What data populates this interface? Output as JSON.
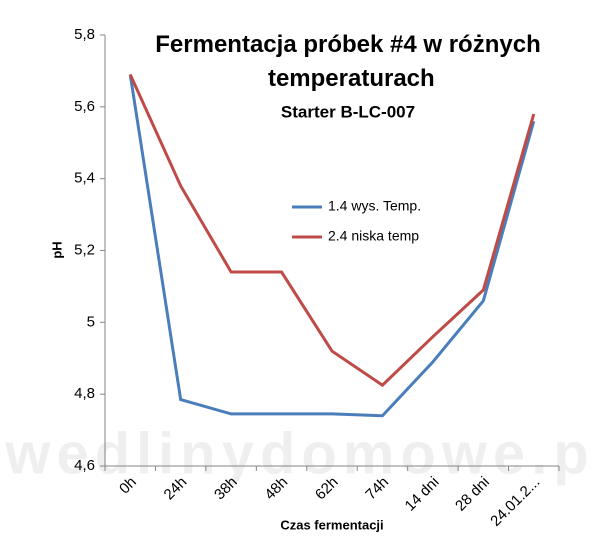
{
  "chart_data": {
    "type": "line",
    "title": "Fermentacja próbek #4 w różnych temperaturach",
    "subtitle": "Starter B-LC-007",
    "x_label": "Czas fermentacji",
    "y_label": "pH",
    "watermark": "wedlinydomowe.p",
    "categories": [
      "0h",
      "24h",
      "38h",
      "48h",
      "62h",
      "74h",
      "14 dni",
      "28 dni",
      "24.01.2..."
    ],
    "series": [
      {
        "name": "1.4 wys. Temp.",
        "color": "#4a7ebb",
        "values": [
          5.69,
          4.785,
          4.745,
          4.745,
          4.745,
          4.74,
          4.89,
          5.06,
          5.56
        ]
      },
      {
        "name": "2.4 niska temp",
        "color": "#be4b48",
        "values": [
          5.69,
          5.38,
          5.14,
          5.14,
          4.92,
          4.825,
          4.96,
          5.09,
          5.58
        ]
      }
    ],
    "ylim": [
      4.6,
      5.8
    ],
    "yticks": [
      {
        "value": 4.6,
        "label": "4,6"
      },
      {
        "value": 4.8,
        "label": "4,8"
      },
      5,
      {
        "value": 5.2,
        "label": "5,2"
      },
      {
        "value": 5.4,
        "label": "5,4"
      },
      {
        "value": 5.6,
        "label": "5,6"
      },
      {
        "value": 5.8,
        "label": "5,8"
      }
    ],
    "grid": false,
    "legend": "center"
  }
}
